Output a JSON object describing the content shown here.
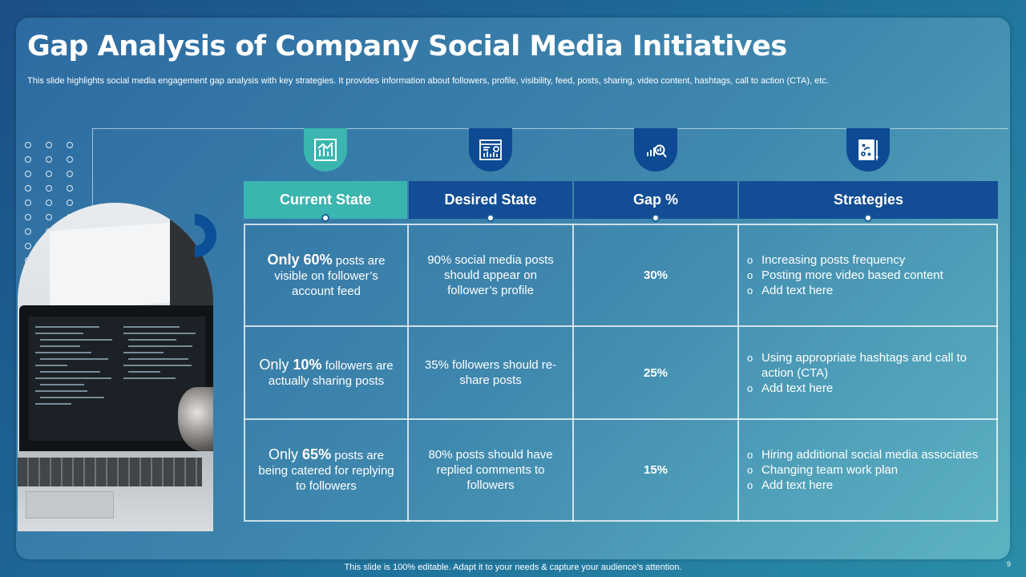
{
  "slide": {
    "title": "Gap Analysis of Company Social Media Initiatives",
    "subtitle": "This slide highlights social media engagement gap analysis with key strategies. It provides information about followers, profile, visibility, feed, posts, sharing, video content, hashtags, call to action (CTA),  etc.",
    "footer": "This slide is 100% editable. Adapt it to your needs & capture your audience’s attention.",
    "page_number": "9"
  },
  "colors": {
    "teal": "#3ab5b0",
    "navy": "#0d4a93",
    "header_navy": "#124d95"
  },
  "icons": {
    "col1": "bar-chart-icon",
    "col2": "dashboard-icon",
    "col3": "magnify-chart-icon",
    "col4": "strategy-board-icon"
  },
  "table": {
    "headers": [
      "Current State",
      "Desired State",
      "Gap %",
      "Strategies"
    ],
    "rows": [
      {
        "current_pre": "Only ",
        "current_num": "60%",
        "current_post": " posts are visible on follower’s account feed",
        "desired": "90% social media posts should appear on follower’s profile",
        "gap": "30%",
        "strategies": [
          "Increasing posts frequency",
          "Posting more video based content",
          "Add text here"
        ]
      },
      {
        "current_pre": "Only ",
        "current_num": "10%",
        "current_post": " followers are actually sharing posts",
        "desired": "35% followers should re-share posts",
        "gap": "25%",
        "strategies": [
          "Using appropriate hashtags and call to action (CTA)",
          "Add text here"
        ]
      },
      {
        "current_pre": "Only ",
        "current_num": "65%",
        "current_post": " posts are being catered for replying to followers",
        "desired": "80% posts should have replied comments to followers",
        "gap": "15%",
        "strategies": [
          "Hiring additional social media associates",
          "Changing team work plan",
          "Add text here"
        ]
      }
    ]
  }
}
